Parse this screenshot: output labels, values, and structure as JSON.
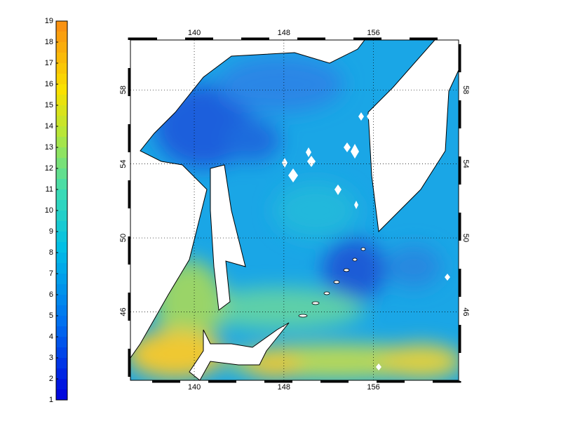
{
  "colorbar": {
    "lim": [
      1,
      19
    ],
    "ticks": [
      1,
      2,
      3,
      4,
      5,
      6,
      7,
      8,
      9,
      10,
      11,
      12,
      13,
      14,
      15,
      16,
      17,
      18,
      19
    ]
  },
  "map": {
    "lonlim": [
      134.3,
      163.6
    ],
    "latlim": [
      42.3,
      60.7
    ],
    "lon_ticks": [
      140,
      148,
      156
    ],
    "lat_ticks": [
      58,
      54,
      50,
      46
    ]
  }
}
